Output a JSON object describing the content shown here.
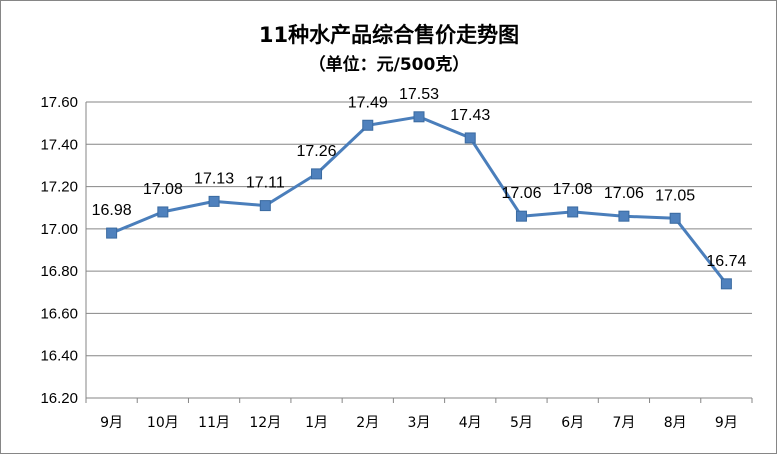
{
  "chart_data": {
    "type": "line",
    "title": "11种水产品综合售价走势图",
    "subtitle": "（单位：元/500克）",
    "categories": [
      "9月",
      "10月",
      "11月",
      "12月",
      "1月",
      "2月",
      "3月",
      "4月",
      "5月",
      "6月",
      "7月",
      "8月",
      "9月"
    ],
    "values": [
      16.98,
      17.08,
      17.13,
      17.11,
      17.26,
      17.49,
      17.53,
      17.43,
      17.06,
      17.08,
      17.06,
      17.05,
      16.74
    ],
    "value_labels": [
      "16.98",
      "17.08",
      "17.13",
      "17.11",
      "17.26",
      "17.49",
      "17.53",
      "17.43",
      "17.06",
      "17.08",
      "17.06",
      "17.05",
      "16.74"
    ],
    "ylim": [
      16.2,
      17.6
    ],
    "yticks": [
      "16.20",
      "16.40",
      "16.60",
      "16.80",
      "17.00",
      "17.20",
      "17.40",
      "17.60"
    ],
    "grid": true,
    "legend": "none",
    "colors": {
      "line": "#4a7ebb",
      "marker": "#4f81bd",
      "marker_border": "#3a6aa0",
      "grid": "#868686",
      "axis": "#868686"
    }
  }
}
